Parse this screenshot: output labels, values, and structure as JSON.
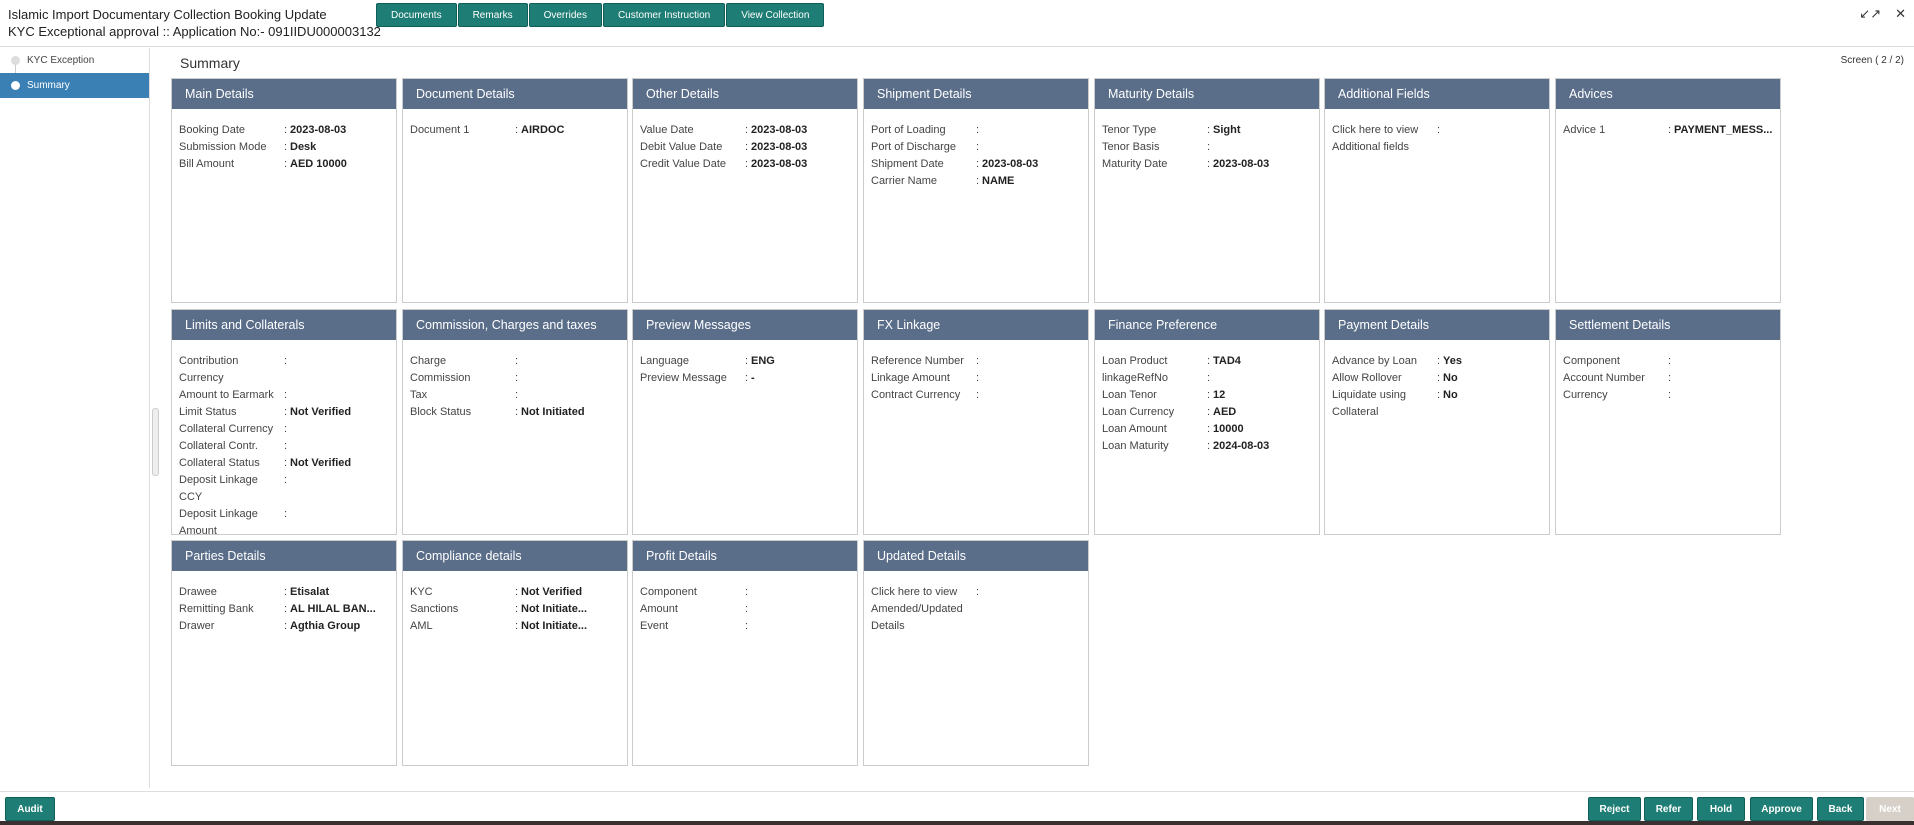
{
  "header": {
    "title": "Islamic Import Documentary Collection Booking Update",
    "subtitle": "KYC Exceptional approval ::  Application No:- 091IIDU000003132",
    "buttons": [
      "Documents",
      "Remarks",
      "Overrides",
      "Customer Instruction",
      "View Collection"
    ],
    "minimize_icon": "↙↗",
    "close_icon": "✕"
  },
  "sidebar": {
    "items": [
      {
        "label": "KYC Exception",
        "active": false
      },
      {
        "label": "Summary",
        "active": true
      }
    ]
  },
  "main": {
    "title": "Summary",
    "screen": "Screen ( 2 / 2)"
  },
  "cards": [
    {
      "title": "Main Details",
      "rows": [
        [
          "Booking Date",
          "2023-08-03"
        ],
        [
          "Submission Mode",
          "Desk"
        ],
        [
          "Bill Amount",
          "AED 10000"
        ]
      ]
    },
    {
      "title": "Document Details",
      "rows": [
        [
          "Document 1",
          "AIRDOC"
        ]
      ]
    },
    {
      "title": "Other Details",
      "rows": [
        [
          "Value Date",
          "2023-08-03"
        ],
        [
          "Debit Value Date",
          "2023-08-03"
        ],
        [
          "Credit Value Date",
          "2023-08-03"
        ]
      ]
    },
    {
      "title": "Shipment Details",
      "rows": [
        [
          "Port of Loading",
          ""
        ],
        [
          "Port of Discharge",
          ""
        ],
        [
          "Shipment Date",
          "2023-08-03"
        ],
        [
          "Carrier Name",
          "NAME"
        ]
      ]
    },
    {
      "title": "Maturity Details",
      "rows": [
        [
          "Tenor Type",
          "Sight"
        ],
        [
          "Tenor Basis",
          ""
        ],
        [
          "Maturity Date",
          "2023-08-03"
        ]
      ]
    },
    {
      "title": "Additional Fields",
      "rows": [
        [
          "Click here to view Additional fields",
          ""
        ]
      ]
    },
    {
      "title": "Advices",
      "rows": [
        [
          "Advice 1",
          "PAYMENT_MESS..."
        ]
      ]
    },
    {
      "title": "Limits and Collaterals",
      "rows": [
        [
          "Contribution Currency",
          ""
        ],
        [
          "Amount to Earmark",
          ""
        ],
        [
          "Limit Status",
          "Not Verified"
        ],
        [
          "Collateral Currency",
          ""
        ],
        [
          "Collateral Contr.",
          ""
        ],
        [
          "Collateral Status",
          "Not Verified"
        ],
        [
          "Deposit Linkage CCY",
          ""
        ],
        [
          "Deposit Linkage Amount",
          ""
        ]
      ]
    },
    {
      "title": "Commission, Charges and taxes",
      "rows": [
        [
          "Charge",
          ""
        ],
        [
          "Commission",
          ""
        ],
        [
          "Tax",
          ""
        ],
        [
          "Block Status",
          "Not Initiated"
        ]
      ]
    },
    {
      "title": "Preview Messages",
      "rows": [
        [
          "Language",
          "ENG"
        ],
        [
          "Preview Message",
          "-"
        ]
      ]
    },
    {
      "title": "FX Linkage",
      "rows": [
        [
          "Reference Number",
          ""
        ],
        [
          "Linkage Amount",
          ""
        ],
        [
          "Contract Currency",
          ""
        ]
      ]
    },
    {
      "title": "Finance Preference",
      "rows": [
        [
          "Loan Product",
          "TAD4"
        ],
        [
          "linkageRefNo",
          ""
        ],
        [
          "Loan Tenor",
          "12"
        ],
        [
          "Loan Currency",
          "AED"
        ],
        [
          "Loan Amount",
          "10000"
        ],
        [
          "Loan Maturity",
          "2024-08-03"
        ]
      ]
    },
    {
      "title": "Payment Details",
      "rows": [
        [
          "Advance by Loan",
          "Yes"
        ],
        [
          "Allow Rollover",
          "No"
        ],
        [
          "Liquidate using Collateral",
          "No"
        ]
      ]
    },
    {
      "title": "Settlement Details",
      "rows": [
        [
          "Component",
          ""
        ],
        [
          "Account Number",
          ""
        ],
        [
          "Currency",
          ""
        ]
      ]
    },
    {
      "title": "Parties Details",
      "rows": [
        [
          "Drawee",
          "Etisalat"
        ],
        [
          "Remitting Bank",
          "AL HILAL BAN..."
        ],
        [
          "Drawer",
          "Agthia Group"
        ]
      ]
    },
    {
      "title": "Compliance details",
      "rows": [
        [
          "KYC",
          "Not Verified"
        ],
        [
          "Sanctions",
          "Not Initiate..."
        ],
        [
          "AML",
          "Not Initiate..."
        ]
      ]
    },
    {
      "title": "Profit Details",
      "rows": [
        [
          "Component",
          ""
        ],
        [
          "Amount",
          ""
        ],
        [
          "Event",
          ""
        ]
      ]
    },
    {
      "title": "Updated Details",
      "rows": [
        [
          "Click here to view Amended/Updated Details",
          ""
        ]
      ]
    }
  ],
  "footer": {
    "audit": "Audit",
    "buttons": [
      "Reject",
      "Refer",
      "Hold",
      "Approve",
      "Back",
      "Next"
    ]
  },
  "colors": {
    "accent": "#1e7d74",
    "card_header": "#5a6e8a",
    "sidebar_active": "#3a80b5"
  }
}
